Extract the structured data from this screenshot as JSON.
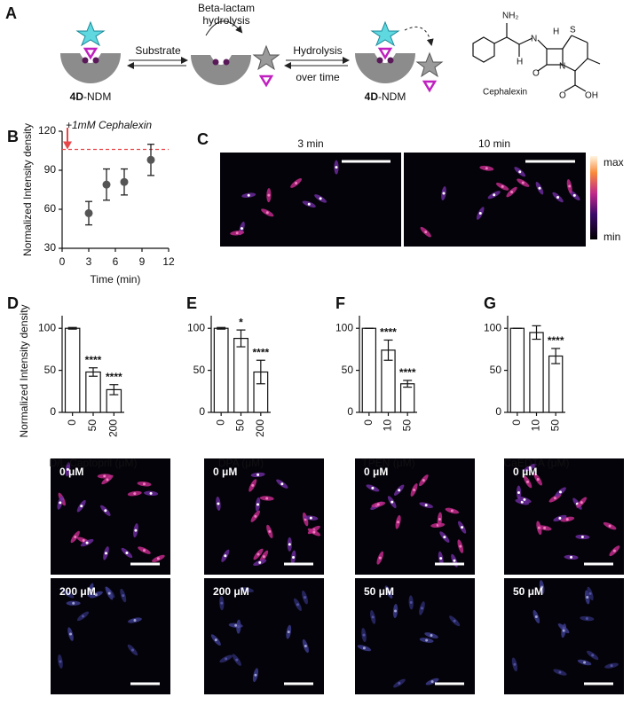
{
  "scheme": {
    "panel": "A",
    "top_arrow": [
      "Beta-lactam",
      "hydrolysis"
    ],
    "arrow1": "Substrate",
    "arrow2": [
      "Hydrolysis",
      "over time"
    ],
    "enzyme": [
      "4D",
      "-NDM"
    ],
    "compound": "Cephalexin",
    "atoms": [
      "NH₂",
      "H",
      "N",
      "S",
      "N",
      "O",
      "OH",
      "O",
      "H"
    ]
  },
  "micrographs_time": {
    "panel": "C",
    "labels": [
      "3 min",
      "10 min"
    ],
    "colorbar": [
      "max",
      "min"
    ]
  },
  "micrographs": [
    [
      "0 μM",
      "200 μM"
    ],
    [
      "0 μM",
      "200 μM"
    ],
    [
      "0 μM",
      "50 μM"
    ],
    [
      "0 μM",
      "50 μM"
    ]
  ],
  "chart_data": [
    {
      "type": "scatter",
      "panel": "B",
      "x": [
        3,
        5,
        7,
        10
      ],
      "y": [
        57,
        79,
        81,
        98
      ],
      "errors": [
        9,
        12,
        10,
        12
      ],
      "color": "#555555",
      "xlim": [
        0,
        12
      ],
      "xticks": [
        0,
        3,
        6,
        9,
        12
      ],
      "ylim": [
        30,
        120
      ],
      "yticks": [
        30,
        60,
        90,
        120
      ],
      "xlabel": "Time (min)",
      "ylabel": "Normalized Intensity density",
      "reference_line": 106,
      "reference_color": "#e8474a",
      "annotation": "+1mM Cephalexin"
    },
    {
      "type": "bar",
      "panel": "D",
      "categories": [
        "0",
        "50",
        "200"
      ],
      "values": [
        100,
        48,
        27
      ],
      "errors": [
        1,
        5,
        6
      ],
      "annotations": [
        null,
        "****",
        "****"
      ],
      "ylim": [
        0,
        115
      ],
      "yticks": [
        0,
        50,
        100
      ],
      "xlabel": "D/L-Captopril (μM)",
      "ylabel": "Normalized Intensity density",
      "color": "#ffffff"
    },
    {
      "type": "bar",
      "panel": "E",
      "categories": [
        "0",
        "50",
        "200"
      ],
      "values": [
        100,
        88,
        48
      ],
      "errors": [
        1,
        10,
        14
      ],
      "annotations": [
        null,
        "*",
        "****"
      ],
      "ylim": [
        0,
        115
      ],
      "yticks": [
        0,
        50,
        100
      ],
      "xlabel": "DPA (μM)",
      "color": "#ffffff"
    },
    {
      "type": "bar",
      "panel": "F",
      "categories": [
        "0",
        "10",
        "50"
      ],
      "values": [
        100,
        74,
        34
      ],
      "errors": [
        0,
        12,
        4
      ],
      "annotations": [
        null,
        "****",
        "****"
      ],
      "ylim": [
        0,
        115
      ],
      "yticks": [
        0,
        50,
        100
      ],
      "xlabel": "TPEN (μM)",
      "color": "#ffffff"
    },
    {
      "type": "bar",
      "panel": "G",
      "categories": [
        "0",
        "10",
        "50"
      ],
      "values": [
        100,
        95,
        67
      ],
      "errors": [
        0,
        8,
        9
      ],
      "annotations": [
        null,
        null,
        "****"
      ],
      "ylim": [
        0,
        115
      ],
      "yticks": [
        0,
        50,
        100
      ],
      "xlabel": "CaEDTA (μM)",
      "color": "#ffffff"
    }
  ]
}
